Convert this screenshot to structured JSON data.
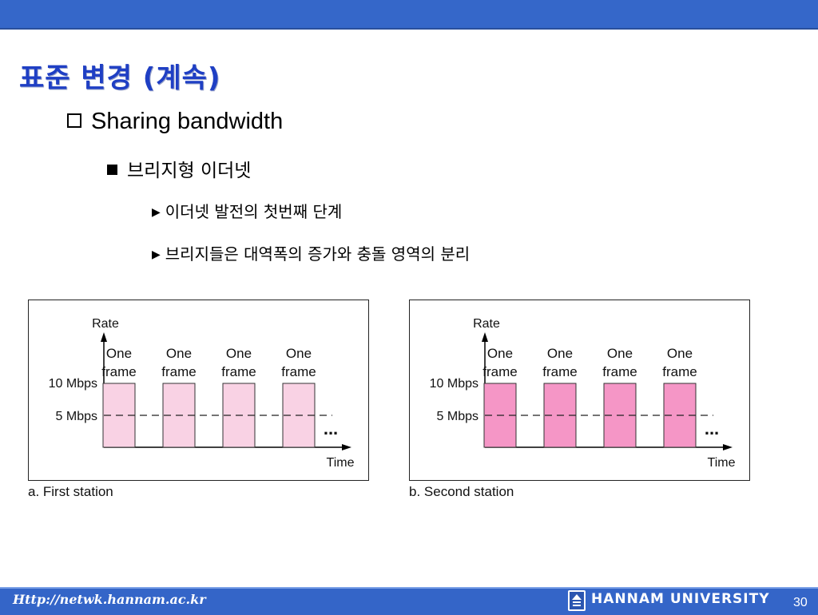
{
  "slide": {
    "title": "표준 변경 (계속)",
    "bullet1": "Sharing bandwidth",
    "bullet2": "브리지형 이더넷",
    "sub1": "이더넷 발전의 첫번째 단계",
    "sub2": "브리지들은 대역폭의 증가와 충돌 영역의 분리"
  },
  "diagram": {
    "rate_label": "Rate",
    "time_label": "Time",
    "y_ticks": [
      "10 Mbps",
      "5 Mbps"
    ],
    "frame_line1": "One",
    "frame_line2": "frame",
    "ellipsis": "...",
    "panels": [
      {
        "caption": "a. First station",
        "frame_color": "#f9d2e4",
        "frames": 4
      },
      {
        "caption": "b. Second station",
        "frame_color": "#f596c6",
        "frames": 4
      }
    ]
  },
  "footer": {
    "url": "Http://netwk.hannam.ac.kr",
    "university": "HANNAM UNIVERSITY",
    "page": "30"
  }
}
